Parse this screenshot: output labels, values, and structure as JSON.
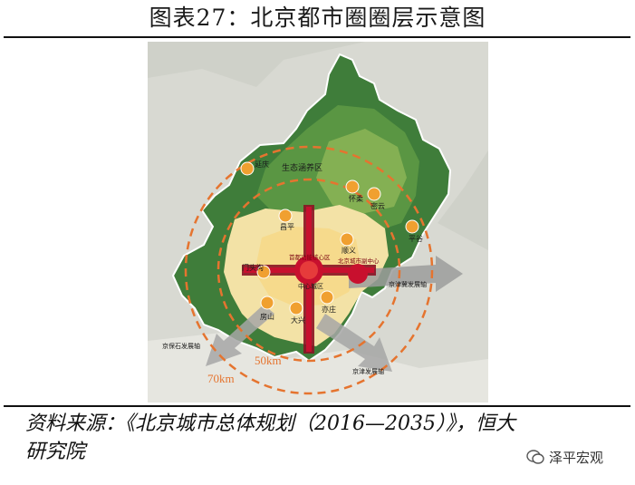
{
  "figure": {
    "title": "图表27：北京都市圈圈层示意图",
    "source_line1": "资料来源：《北京城市总体规划（2016—2035）》，恒大",
    "source_line2": "研究院",
    "watermark": "泽平宏观"
  },
  "map": {
    "ring_labels": {
      "inner": "50km",
      "outer": "70km"
    },
    "zone_labels": {
      "ecological": "生态涵养区",
      "core": "首都功能核心区",
      "subcenter": "北京城市副中心",
      "center": "中心城区",
      "east_axis": "京津冀发展轴",
      "south_axis": "京津发展轴",
      "southwest_axis": "京保石发展轴"
    },
    "towns": [
      {
        "name": "延庆"
      },
      {
        "name": "怀柔"
      },
      {
        "name": "密云"
      },
      {
        "name": "平谷"
      },
      {
        "name": "顺义"
      },
      {
        "name": "昌平"
      },
      {
        "name": "门头沟"
      },
      {
        "name": "房山"
      },
      {
        "name": "大兴"
      },
      {
        "name": "亦庄"
      }
    ],
    "colors": {
      "mountain": "#3f7d3a",
      "forest_light": "#7aa94e",
      "urban": "#f3e2a6",
      "core": "#c8102e",
      "axis": "#8a1324",
      "ring": "#e5742f",
      "town": "#f0a030"
    }
  }
}
